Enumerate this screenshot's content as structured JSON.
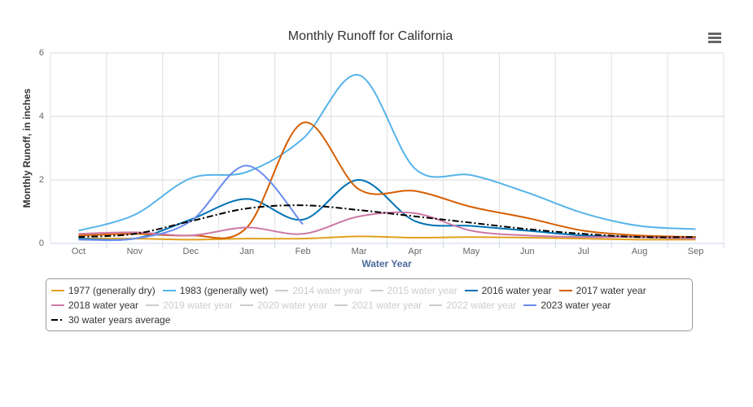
{
  "chart_data": {
    "type": "spline",
    "title": "Monthly Runoff for California",
    "x_label": "Water Year",
    "y_label": "Monthly Runoff, in inches",
    "categories": [
      "Oct",
      "Nov",
      "Dec",
      "Jan",
      "Feb",
      "Mar",
      "Apr",
      "May",
      "Jun",
      "Jul",
      "Aug",
      "Sep"
    ],
    "ylim": [
      0,
      6
    ],
    "yticks": [
      0,
      2,
      4,
      6
    ],
    "grid": true,
    "series": [
      {
        "name": "1977 (generally dry)",
        "color": "#e0a020",
        "values": [
          0.15,
          0.15,
          0.12,
          0.15,
          0.15,
          0.22,
          0.18,
          0.2,
          0.18,
          0.15,
          0.12,
          0.12
        ]
      },
      {
        "name": "1983 (generally wet)",
        "color": "#56b4e9",
        "values": [
          0.4,
          0.9,
          2.05,
          2.25,
          3.3,
          5.3,
          2.35,
          2.15,
          1.6,
          0.95,
          0.55,
          0.45
        ]
      },
      {
        "name": "2014 water year",
        "visible": false
      },
      {
        "name": "2015 water year",
        "visible": false
      },
      {
        "name": "2016 water year",
        "color": "#0072b2",
        "values": [
          0.15,
          0.15,
          0.75,
          1.4,
          0.75,
          2.0,
          0.7,
          0.55,
          0.4,
          0.25,
          0.2,
          0.15
        ]
      },
      {
        "name": "2017 water year",
        "color": "#d55e00",
        "values": [
          0.25,
          0.3,
          0.25,
          0.5,
          3.8,
          1.7,
          1.65,
          1.15,
          0.8,
          0.4,
          0.25,
          0.2
        ]
      },
      {
        "name": "2018 water year",
        "color": "#cc79a7",
        "values": [
          0.3,
          0.35,
          0.25,
          0.5,
          0.3,
          0.85,
          0.95,
          0.4,
          0.25,
          0.2,
          0.2,
          0.15
        ]
      },
      {
        "name": "2019 water year",
        "visible": false
      },
      {
        "name": "2020 water year",
        "visible": false
      },
      {
        "name": "2021 water year",
        "visible": false
      },
      {
        "name": "2022 water year",
        "visible": false
      },
      {
        "name": "2023 water year",
        "color": "#6b8cee",
        "values": [
          0.12,
          0.15,
          0.7,
          2.45,
          0.6,
          null,
          null,
          null,
          null,
          null,
          null,
          null
        ]
      },
      {
        "name": "30 water years average",
        "color": "#000000",
        "dash": "8,3,2,3",
        "values": [
          0.2,
          0.3,
          0.7,
          1.1,
          1.2,
          1.05,
          0.85,
          0.65,
          0.45,
          0.3,
          0.2,
          0.2
        ]
      }
    ]
  }
}
